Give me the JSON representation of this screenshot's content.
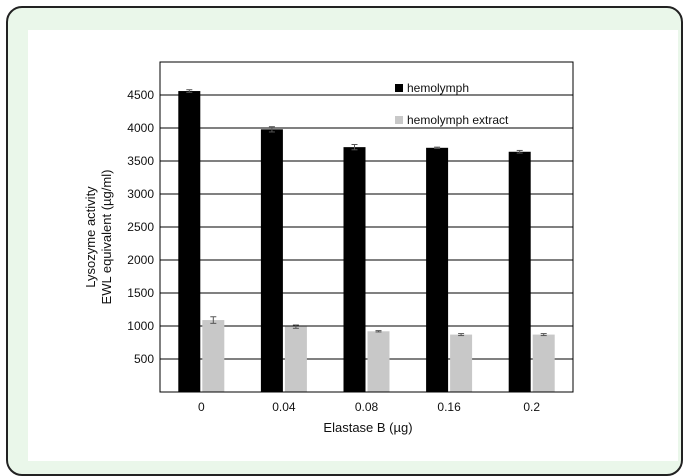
{
  "chart_data": {
    "type": "bar",
    "categories": [
      "0",
      "0.04",
      "0.08",
      "0.16",
      "0.2"
    ],
    "series": [
      {
        "name": "hemolymph",
        "values": [
          4560,
          3980,
          3710,
          3700,
          3640
        ],
        "errors": [
          20,
          40,
          40,
          10,
          20
        ],
        "color": "#000000"
      },
      {
        "name": "hemolymph extract",
        "values": [
          1090,
          990,
          920,
          870,
          870
        ],
        "errors": [
          50,
          25,
          10,
          15,
          15
        ],
        "color": "#c8c8c8"
      }
    ],
    "xlabel": "Elastase B (µg)",
    "ylabel_lines": [
      "Lysozyme activity",
      "EWL equivalent (µg/ml)"
    ],
    "ylim": [
      0,
      5000
    ],
    "yticks": [
      500,
      1000,
      1500,
      2000,
      2500,
      3000,
      3500,
      4000,
      4500
    ],
    "ytick_labels": [
      "500",
      "1000",
      "1500",
      "2000",
      "2500",
      "3000",
      "3500",
      "4000",
      "4500"
    ],
    "grid": "horizontal",
    "legend_position": "top-right"
  }
}
